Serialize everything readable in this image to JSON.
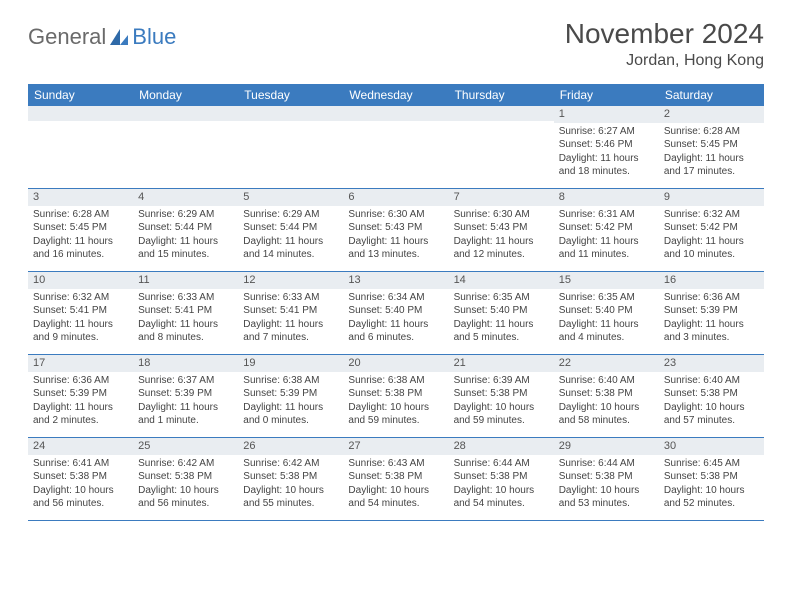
{
  "logo": {
    "general": "General",
    "blue": "Blue"
  },
  "header": {
    "title": "November 2024",
    "location": "Jordan, Hong Kong"
  },
  "dow": [
    "Sunday",
    "Monday",
    "Tuesday",
    "Wednesday",
    "Thursday",
    "Friday",
    "Saturday"
  ],
  "colors": {
    "brand_blue": "#3b7bbf",
    "header_gray": "#e9edf1",
    "text_gray": "#4a4a4a",
    "logo_gray": "#6a6a6a"
  },
  "weeks": [
    [
      {
        "n": "",
        "sr": "",
        "ss": "",
        "d1": "",
        "d2": ""
      },
      {
        "n": "",
        "sr": "",
        "ss": "",
        "d1": "",
        "d2": ""
      },
      {
        "n": "",
        "sr": "",
        "ss": "",
        "d1": "",
        "d2": ""
      },
      {
        "n": "",
        "sr": "",
        "ss": "",
        "d1": "",
        "d2": ""
      },
      {
        "n": "",
        "sr": "",
        "ss": "",
        "d1": "",
        "d2": ""
      },
      {
        "n": "1",
        "sr": "Sunrise: 6:27 AM",
        "ss": "Sunset: 5:46 PM",
        "d1": "Daylight: 11 hours",
        "d2": "and 18 minutes."
      },
      {
        "n": "2",
        "sr": "Sunrise: 6:28 AM",
        "ss": "Sunset: 5:45 PM",
        "d1": "Daylight: 11 hours",
        "d2": "and 17 minutes."
      }
    ],
    [
      {
        "n": "3",
        "sr": "Sunrise: 6:28 AM",
        "ss": "Sunset: 5:45 PM",
        "d1": "Daylight: 11 hours",
        "d2": "and 16 minutes."
      },
      {
        "n": "4",
        "sr": "Sunrise: 6:29 AM",
        "ss": "Sunset: 5:44 PM",
        "d1": "Daylight: 11 hours",
        "d2": "and 15 minutes."
      },
      {
        "n": "5",
        "sr": "Sunrise: 6:29 AM",
        "ss": "Sunset: 5:44 PM",
        "d1": "Daylight: 11 hours",
        "d2": "and 14 minutes."
      },
      {
        "n": "6",
        "sr": "Sunrise: 6:30 AM",
        "ss": "Sunset: 5:43 PM",
        "d1": "Daylight: 11 hours",
        "d2": "and 13 minutes."
      },
      {
        "n": "7",
        "sr": "Sunrise: 6:30 AM",
        "ss": "Sunset: 5:43 PM",
        "d1": "Daylight: 11 hours",
        "d2": "and 12 minutes."
      },
      {
        "n": "8",
        "sr": "Sunrise: 6:31 AM",
        "ss": "Sunset: 5:42 PM",
        "d1": "Daylight: 11 hours",
        "d2": "and 11 minutes."
      },
      {
        "n": "9",
        "sr": "Sunrise: 6:32 AM",
        "ss": "Sunset: 5:42 PM",
        "d1": "Daylight: 11 hours",
        "d2": "and 10 minutes."
      }
    ],
    [
      {
        "n": "10",
        "sr": "Sunrise: 6:32 AM",
        "ss": "Sunset: 5:41 PM",
        "d1": "Daylight: 11 hours",
        "d2": "and 9 minutes."
      },
      {
        "n": "11",
        "sr": "Sunrise: 6:33 AM",
        "ss": "Sunset: 5:41 PM",
        "d1": "Daylight: 11 hours",
        "d2": "and 8 minutes."
      },
      {
        "n": "12",
        "sr": "Sunrise: 6:33 AM",
        "ss": "Sunset: 5:41 PM",
        "d1": "Daylight: 11 hours",
        "d2": "and 7 minutes."
      },
      {
        "n": "13",
        "sr": "Sunrise: 6:34 AM",
        "ss": "Sunset: 5:40 PM",
        "d1": "Daylight: 11 hours",
        "d2": "and 6 minutes."
      },
      {
        "n": "14",
        "sr": "Sunrise: 6:35 AM",
        "ss": "Sunset: 5:40 PM",
        "d1": "Daylight: 11 hours",
        "d2": "and 5 minutes."
      },
      {
        "n": "15",
        "sr": "Sunrise: 6:35 AM",
        "ss": "Sunset: 5:40 PM",
        "d1": "Daylight: 11 hours",
        "d2": "and 4 minutes."
      },
      {
        "n": "16",
        "sr": "Sunrise: 6:36 AM",
        "ss": "Sunset: 5:39 PM",
        "d1": "Daylight: 11 hours",
        "d2": "and 3 minutes."
      }
    ],
    [
      {
        "n": "17",
        "sr": "Sunrise: 6:36 AM",
        "ss": "Sunset: 5:39 PM",
        "d1": "Daylight: 11 hours",
        "d2": "and 2 minutes."
      },
      {
        "n": "18",
        "sr": "Sunrise: 6:37 AM",
        "ss": "Sunset: 5:39 PM",
        "d1": "Daylight: 11 hours",
        "d2": "and 1 minute."
      },
      {
        "n": "19",
        "sr": "Sunrise: 6:38 AM",
        "ss": "Sunset: 5:39 PM",
        "d1": "Daylight: 11 hours",
        "d2": "and 0 minutes."
      },
      {
        "n": "20",
        "sr": "Sunrise: 6:38 AM",
        "ss": "Sunset: 5:38 PM",
        "d1": "Daylight: 10 hours",
        "d2": "and 59 minutes."
      },
      {
        "n": "21",
        "sr": "Sunrise: 6:39 AM",
        "ss": "Sunset: 5:38 PM",
        "d1": "Daylight: 10 hours",
        "d2": "and 59 minutes."
      },
      {
        "n": "22",
        "sr": "Sunrise: 6:40 AM",
        "ss": "Sunset: 5:38 PM",
        "d1": "Daylight: 10 hours",
        "d2": "and 58 minutes."
      },
      {
        "n": "23",
        "sr": "Sunrise: 6:40 AM",
        "ss": "Sunset: 5:38 PM",
        "d1": "Daylight: 10 hours",
        "d2": "and 57 minutes."
      }
    ],
    [
      {
        "n": "24",
        "sr": "Sunrise: 6:41 AM",
        "ss": "Sunset: 5:38 PM",
        "d1": "Daylight: 10 hours",
        "d2": "and 56 minutes."
      },
      {
        "n": "25",
        "sr": "Sunrise: 6:42 AM",
        "ss": "Sunset: 5:38 PM",
        "d1": "Daylight: 10 hours",
        "d2": "and 56 minutes."
      },
      {
        "n": "26",
        "sr": "Sunrise: 6:42 AM",
        "ss": "Sunset: 5:38 PM",
        "d1": "Daylight: 10 hours",
        "d2": "and 55 minutes."
      },
      {
        "n": "27",
        "sr": "Sunrise: 6:43 AM",
        "ss": "Sunset: 5:38 PM",
        "d1": "Daylight: 10 hours",
        "d2": "and 54 minutes."
      },
      {
        "n": "28",
        "sr": "Sunrise: 6:44 AM",
        "ss": "Sunset: 5:38 PM",
        "d1": "Daylight: 10 hours",
        "d2": "and 54 minutes."
      },
      {
        "n": "29",
        "sr": "Sunrise: 6:44 AM",
        "ss": "Sunset: 5:38 PM",
        "d1": "Daylight: 10 hours",
        "d2": "and 53 minutes."
      },
      {
        "n": "30",
        "sr": "Sunrise: 6:45 AM",
        "ss": "Sunset: 5:38 PM",
        "d1": "Daylight: 10 hours",
        "d2": "and 52 minutes."
      }
    ]
  ]
}
